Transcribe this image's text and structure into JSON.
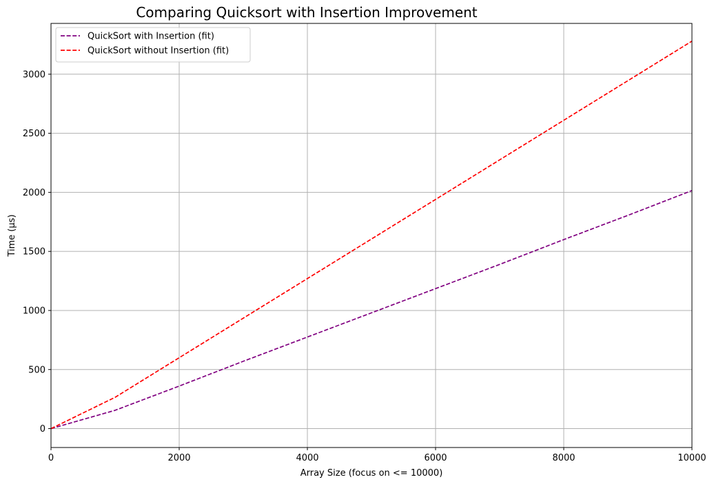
{
  "chart_data": {
    "type": "line",
    "title": "Comparing Quicksort with Insertion Improvement",
    "xlabel": "Array Size (focus on <= 10000)",
    "ylabel": "Time (µs)",
    "xlim": [
      0,
      10000
    ],
    "ylim": [
      -160,
      3430
    ],
    "x_ticks": [
      0,
      2000,
      4000,
      6000,
      8000,
      10000
    ],
    "y_ticks": [
      0,
      500,
      1000,
      1500,
      2000,
      2500,
      3000
    ],
    "grid": true,
    "legend_position": "top-left",
    "series": [
      {
        "name": "QuickSort with Insertion (fit)",
        "color": "#800080",
        "linestyle": "dashed",
        "x": [
          0,
          1000,
          2000,
          3000,
          4000,
          5000,
          6000,
          7000,
          8000,
          9000,
          10000
        ],
        "y": [
          0,
          155,
          360,
          570,
          775,
          980,
          1185,
          1390,
          1600,
          1805,
          2015
        ]
      },
      {
        "name": "QuickSort without Insertion (fit)",
        "color": "#ff0000",
        "linestyle": "dashed",
        "x": [
          0,
          1000,
          2000,
          3000,
          4000,
          5000,
          6000,
          7000,
          8000,
          9000,
          10000
        ],
        "y": [
          0,
          265,
          600,
          935,
          1270,
          1605,
          1940,
          2275,
          2610,
          2945,
          3280
        ]
      }
    ]
  }
}
